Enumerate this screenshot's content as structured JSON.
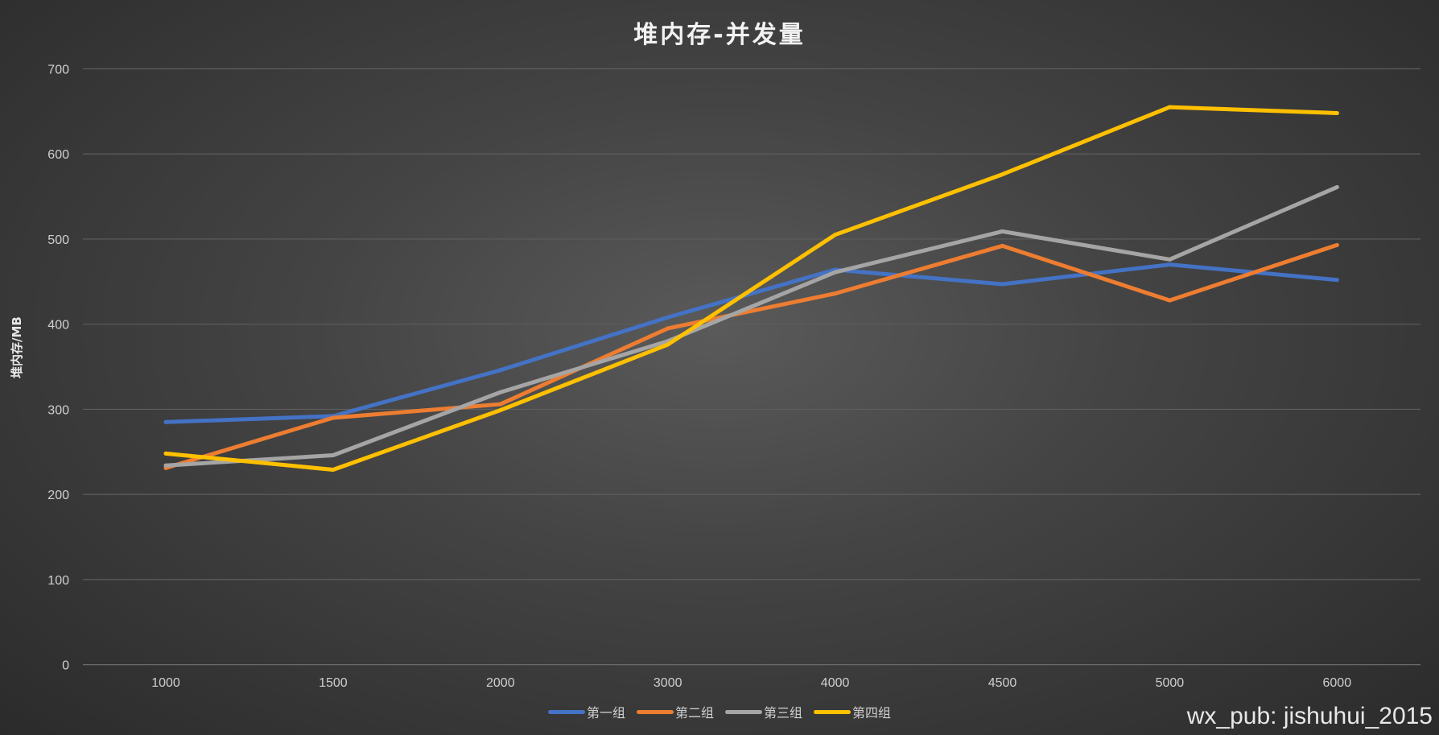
{
  "chart_data": {
    "type": "line",
    "title": "堆内存-并发量",
    "xlabel": "",
    "ylabel": "堆内存/MB",
    "categories": [
      "1000",
      "1500",
      "2000",
      "3000",
      "4000",
      "4500",
      "5000",
      "6000"
    ],
    "ylim": [
      0,
      700
    ],
    "yticks": [
      "0",
      "100",
      "200",
      "300",
      "400",
      "500",
      "600",
      "700"
    ],
    "grid": true,
    "legend_position": "bottom",
    "series": [
      {
        "name": "第一组",
        "color": "#4472c4",
        "values": [
          285,
          292,
          346,
          408,
          464,
          447,
          470,
          452
        ]
      },
      {
        "name": "第二组",
        "color": "#ed7d31",
        "values": [
          231,
          290,
          306,
          395,
          436,
          492,
          428,
          493
        ]
      },
      {
        "name": "第三组",
        "color": "#a5a5a5",
        "values": [
          234,
          246,
          320,
          380,
          461,
          509,
          476,
          561
        ]
      },
      {
        "name": "第四组",
        "color": "#ffc000",
        "values": [
          248,
          229,
          299,
          376,
          505,
          576,
          655,
          648
        ]
      }
    ]
  },
  "watermark": "wx_pub: jishuhui_2015"
}
